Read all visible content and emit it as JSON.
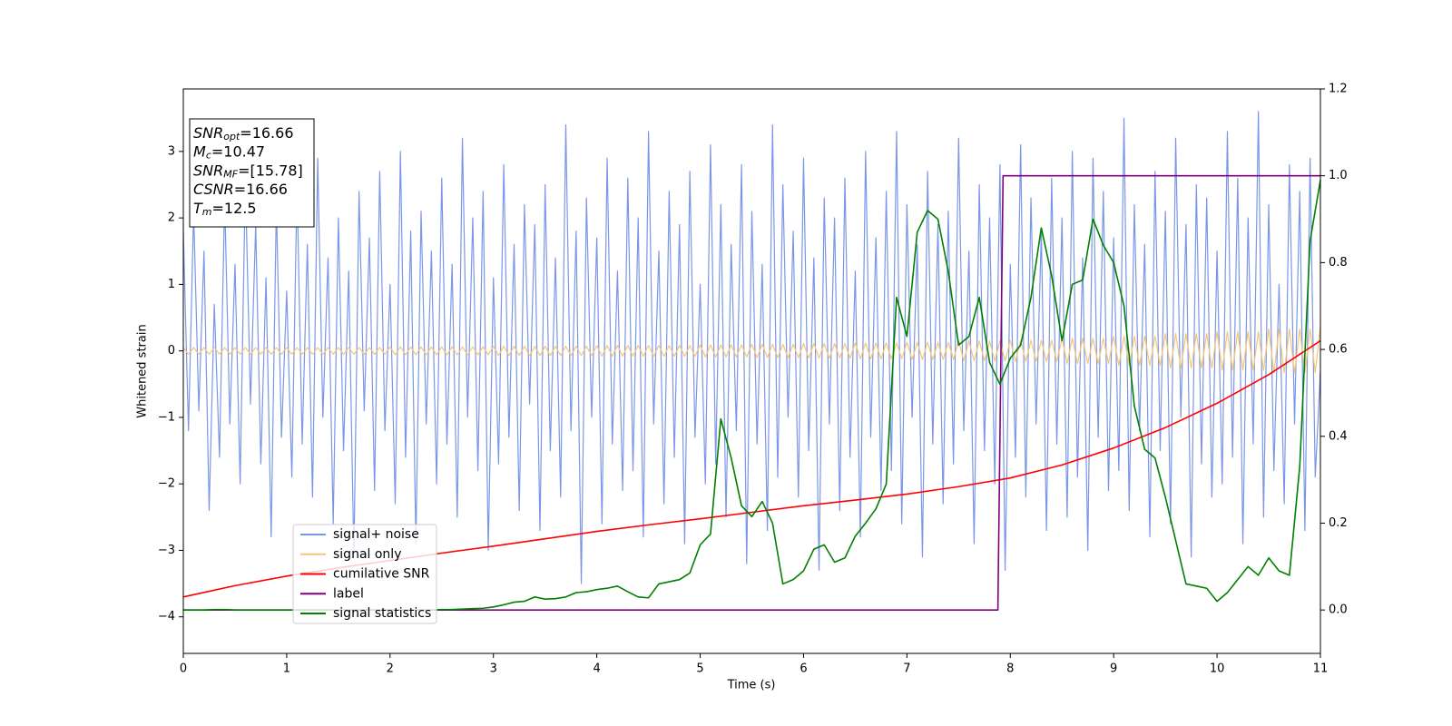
{
  "chart_data": {
    "type": "line",
    "xlabel": "Time (s)",
    "ylabel": "Whitened strain",
    "xlim": [
      0,
      11
    ],
    "ylim": [
      -4.55,
      3.94
    ],
    "y2lim": [
      -0.1,
      1.2
    ],
    "xticks": [
      0,
      1,
      2,
      3,
      4,
      5,
      6,
      7,
      8,
      9,
      10,
      11
    ],
    "yticks": [
      {
        "value": -4,
        "label": "−4"
      },
      {
        "value": -3,
        "label": "−3"
      },
      {
        "value": -2,
        "label": "−2"
      },
      {
        "value": -1,
        "label": "−1"
      },
      0,
      1,
      2,
      3
    ],
    "y2ticks": [
      {
        "value": 0,
        "label": "0.0"
      },
      0.2,
      0.4,
      0.6,
      0.8,
      {
        "value": 1,
        "label": "1.0"
      },
      1.2
    ],
    "legend": "lower left",
    "annotation": [
      {
        "main": "SNR",
        "sub": "opt",
        "rest": "=16.66"
      },
      {
        "main": "M",
        "sub": "c",
        "rest": "=10.47"
      },
      {
        "main": "SNR",
        "sub": "MF",
        "rest": "=[15.78]"
      },
      {
        "main": "CSNR",
        "rest": "=16.66"
      },
      {
        "main": "T",
        "sub": "m",
        "rest": "=12.5"
      }
    ],
    "x": [
      0,
      0.05,
      0.1,
      0.15,
      0.2,
      0.25,
      0.3,
      0.35,
      0.4,
      0.45,
      0.5,
      0.55,
      0.6,
      0.65,
      0.7,
      0.75,
      0.8,
      0.85,
      0.9,
      0.95,
      1,
      1.05,
      1.1,
      1.15,
      1.2,
      1.25,
      1.3,
      1.35,
      1.4,
      1.45,
      1.5,
      1.55,
      1.6,
      1.65,
      1.7,
      1.75,
      1.8,
      1.85,
      1.9,
      1.95,
      2,
      2.05,
      2.1,
      2.15,
      2.2,
      2.25,
      2.3,
      2.35,
      2.4,
      2.45,
      2.5,
      2.55,
      2.6,
      2.65,
      2.7,
      2.75,
      2.8,
      2.85,
      2.9,
      2.95,
      3,
      3.05,
      3.1,
      3.15,
      3.2,
      3.25,
      3.3,
      3.35,
      3.4,
      3.45,
      3.5,
      3.55,
      3.6,
      3.65,
      3.7,
      3.75,
      3.8,
      3.85,
      3.9,
      3.95,
      4,
      4.05,
      4.1,
      4.15,
      4.2,
      4.25,
      4.3,
      4.35,
      4.4,
      4.45,
      4.5,
      4.55,
      4.6,
      4.65,
      4.7,
      4.75,
      4.8,
      4.85,
      4.9,
      4.95,
      5,
      5.05,
      5.1,
      5.15,
      5.2,
      5.25,
      5.3,
      5.35,
      5.4,
      5.45,
      5.5,
      5.55,
      5.6,
      5.65,
      5.7,
      5.75,
      5.8,
      5.85,
      5.9,
      5.95,
      6,
      6.05,
      6.1,
      6.15,
      6.2,
      6.25,
      6.3,
      6.35,
      6.4,
      6.45,
      6.5,
      6.55,
      6.6,
      6.65,
      6.7,
      6.75,
      6.8,
      6.85,
      6.9,
      6.95,
      7,
      7.05,
      7.1,
      7.15,
      7.2,
      7.25,
      7.3,
      7.35,
      7.4,
      7.45,
      7.5,
      7.55,
      7.6,
      7.65,
      7.7,
      7.75,
      7.8,
      7.85,
      7.9,
      7.95,
      8,
      8.05,
      8.1,
      8.15,
      8.2,
      8.25,
      8.3,
      8.35,
      8.4,
      8.45,
      8.5,
      8.55,
      8.6,
      8.65,
      8.7,
      8.75,
      8.8,
      8.85,
      8.9,
      8.95,
      9,
      9.05,
      9.1,
      9.15,
      9.2,
      9.25,
      9.3,
      9.35,
      9.4,
      9.45,
      9.5,
      9.55,
      9.6,
      9.65,
      9.7,
      9.75,
      9.8,
      9.85,
      9.9,
      9.95,
      10,
      10.05,
      10.1,
      10.15,
      10.2,
      10.25,
      10.3,
      10.35,
      10.4,
      10.45,
      10.5,
      10.55,
      10.6,
      10.65,
      10.7,
      10.75,
      10.8,
      10.85,
      10.9,
      10.95,
      11
    ],
    "series": [
      {
        "name": "signal+ noise",
        "color": "#7b96e8",
        "values": [
          1.8,
          -1.2,
          2.1,
          -0.9,
          1.5,
          -2.4,
          0.7,
          -1.6,
          2.3,
          -1.1,
          1.3,
          -2.0,
          2.6,
          -0.8,
          1.9,
          -1.7,
          1.1,
          -2.8,
          2.2,
          -1.3,
          0.9,
          -1.9,
          2.5,
          -1.4,
          1.6,
          -2.2,
          2.9,
          -1.0,
          1.4,
          -2.6,
          2.0,
          -1.5,
          1.2,
          -3.1,
          2.4,
          -0.9,
          1.7,
          -2.1,
          2.7,
          -1.2,
          1.0,
          -2.3,
          3.0,
          -1.6,
          1.8,
          -2.9,
          2.1,
          -1.1,
          1.5,
          -2.0,
          2.6,
          -1.4,
          1.3,
          -2.5,
          3.2,
          -1.0,
          2.0,
          -1.8,
          2.4,
          -3.0,
          1.1,
          -1.7,
          2.8,
          -1.3,
          1.6,
          -2.4,
          2.2,
          -0.8,
          1.9,
          -2.7,
          2.5,
          -1.5,
          1.4,
          -2.2,
          3.4,
          -1.2,
          1.8,
          -3.5,
          2.3,
          -1.0,
          1.7,
          -2.6,
          2.9,
          -1.4,
          1.2,
          -2.1,
          2.6,
          -1.8,
          2.0,
          -2.8,
          3.3,
          -1.1,
          1.5,
          -2.3,
          2.4,
          -1.6,
          1.9,
          -2.9,
          2.7,
          -1.3,
          1.0,
          -2.0,
          3.1,
          -1.7,
          2.2,
          -2.5,
          1.6,
          -1.2,
          2.8,
          -3.2,
          2.1,
          -1.4,
          1.3,
          -2.7,
          3.4,
          -1.9,
          2.5,
          -1.0,
          1.8,
          -2.2,
          2.9,
          -1.5,
          1.4,
          -3.3,
          2.3,
          -1.1,
          2.0,
          -2.4,
          2.6,
          -1.6,
          1.2,
          -2.8,
          3.0,
          -1.3,
          1.7,
          -2.1,
          2.4,
          -1.8,
          3.3,
          -2.6,
          2.2,
          -1.0,
          1.6,
          -3.1,
          2.7,
          -1.4,
          1.9,
          -2.3,
          2.1,
          -1.7,
          3.2,
          -1.2,
          1.5,
          -2.9,
          2.5,
          -1.5,
          2.0,
          -2.0,
          2.8,
          -3.3,
          1.3,
          -1.6,
          3.1,
          -2.2,
          2.3,
          -1.1,
          1.8,
          -2.7,
          2.6,
          -1.4,
          2.0,
          -2.5,
          3.0,
          -1.9,
          1.4,
          -3.0,
          2.9,
          -1.3,
          2.4,
          -2.1,
          1.7,
          -1.8,
          3.5,
          -2.4,
          2.2,
          -1.2,
          1.6,
          -2.8,
          2.7,
          -1.5,
          2.1,
          -2.6,
          3.2,
          -1.0,
          1.9,
          -3.1,
          2.5,
          -1.7,
          2.3,
          -2.2,
          1.5,
          -2.0,
          3.3,
          -1.6,
          2.6,
          -2.9,
          2.0,
          -1.4,
          3.6,
          -2.5,
          2.2,
          -1.8,
          1.0,
          -2.3,
          2.8,
          -1.1,
          2.4,
          -2.7,
          2.9,
          -1.9,
          -0.3
        ]
      },
      {
        "name": "signal only",
        "color": "#f5c67a",
        "values": [
          0.05,
          -0.05,
          0.05,
          -0.05,
          0.05,
          -0.05,
          0.05,
          -0.05,
          0.05,
          -0.05,
          0.05,
          -0.05,
          0.05,
          -0.05,
          0.05,
          -0.05,
          0.05,
          -0.05,
          0.05,
          -0.05,
          0.05,
          -0.05,
          0.05,
          -0.05,
          0.05,
          -0.05,
          0.05,
          -0.05,
          0.05,
          -0.05,
          0.05,
          -0.05,
          0.05,
          -0.05,
          0.05,
          -0.05,
          0.05,
          -0.05,
          0.05,
          -0.05,
          0.06,
          -0.06,
          0.06,
          -0.06,
          0.06,
          -0.06,
          0.06,
          -0.06,
          0.06,
          -0.06,
          0.06,
          -0.06,
          0.06,
          -0.06,
          0.06,
          -0.06,
          0.06,
          -0.06,
          0.06,
          -0.06,
          0.07,
          -0.07,
          0.07,
          -0.07,
          0.07,
          -0.07,
          0.07,
          -0.07,
          0.07,
          -0.07,
          0.07,
          -0.07,
          0.07,
          -0.07,
          0.07,
          -0.07,
          0.07,
          -0.07,
          0.07,
          -0.07,
          0.08,
          -0.08,
          0.08,
          -0.08,
          0.08,
          -0.08,
          0.08,
          -0.08,
          0.08,
          -0.08,
          0.08,
          -0.08,
          0.08,
          -0.08,
          0.08,
          -0.08,
          0.08,
          -0.08,
          0.08,
          -0.08,
          0.09,
          -0.09,
          0.09,
          -0.09,
          0.09,
          -0.09,
          0.09,
          -0.09,
          0.09,
          -0.09,
          0.1,
          -0.1,
          0.1,
          -0.1,
          0.1,
          -0.1,
          0.1,
          -0.1,
          0.1,
          -0.1,
          0.11,
          -0.11,
          0.11,
          -0.11,
          0.11,
          -0.11,
          0.11,
          -0.11,
          0.11,
          -0.11,
          0.12,
          -0.12,
          0.12,
          -0.12,
          0.12,
          -0.12,
          0.12,
          -0.12,
          0.12,
          -0.12,
          0.13,
          -0.13,
          0.13,
          -0.13,
          0.13,
          -0.13,
          0.13,
          -0.13,
          0.13,
          -0.13,
          0.15,
          -0.15,
          0.15,
          -0.15,
          0.15,
          -0.15,
          0.15,
          -0.15,
          0.15,
          -0.15,
          0.16,
          -0.16,
          0.16,
          -0.16,
          0.16,
          -0.16,
          0.16,
          -0.16,
          0.16,
          -0.16,
          0.19,
          -0.19,
          0.19,
          -0.19,
          0.19,
          -0.19,
          0.19,
          -0.19,
          0.19,
          -0.19,
          0.22,
          -0.22,
          0.22,
          -0.22,
          0.22,
          -0.22,
          0.22,
          -0.22,
          0.22,
          -0.22,
          0.26,
          -0.26,
          0.26,
          -0.26,
          0.26,
          -0.26,
          0.26,
          -0.26,
          0.26,
          -0.26,
          0.29,
          -0.29,
          0.29,
          -0.29,
          0.29,
          -0.29,
          0.29,
          -0.29,
          0.29,
          -0.29,
          0.33,
          -0.33,
          0.33,
          -0.33,
          0.33,
          -0.33,
          0.33,
          -0.33,
          0.33,
          -0.33,
          0.38
        ]
      },
      {
        "name": "cumilative SNR",
        "color": "#ff0000",
        "axis": "y2",
        "x": [
          0,
          0.5,
          1,
          1.5,
          2,
          2.5,
          3,
          3.5,
          4,
          4.5,
          5,
          5.5,
          6,
          6.5,
          7,
          7.5,
          8,
          8.5,
          9,
          9.5,
          10,
          10.5,
          11
        ],
        "values": [
          0.03,
          0.056,
          0.078,
          0.097,
          0.114,
          0.131,
          0.147,
          0.164,
          0.181,
          0.196,
          0.21,
          0.225,
          0.24,
          0.253,
          0.267,
          0.284,
          0.304,
          0.334,
          0.373,
          0.42,
          0.476,
          0.542,
          0.62
        ]
      },
      {
        "name": "label",
        "color": "#800080",
        "axis": "y2",
        "x": [
          0,
          7.88,
          7.93,
          11
        ],
        "values": [
          0,
          0,
          1,
          1
        ]
      },
      {
        "name": "signal statistics",
        "color": "#008000",
        "axis": "y2",
        "x": [
          0,
          0.1,
          0.2,
          0.3,
          0.4,
          0.5,
          0.6,
          0.7,
          0.8,
          0.9,
          1,
          1.1,
          1.2,
          1.3,
          1.4,
          1.5,
          1.6,
          1.7,
          1.8,
          1.9,
          2,
          2.1,
          2.2,
          2.3,
          2.4,
          2.5,
          2.6,
          2.7,
          2.8,
          2.9,
          3,
          3.1,
          3.2,
          3.3,
          3.4,
          3.5,
          3.6,
          3.7,
          3.8,
          3.9,
          4,
          4.1,
          4.2,
          4.3,
          4.4,
          4.5,
          4.6,
          4.7,
          4.8,
          4.9,
          5,
          5.1,
          5.2,
          5.3,
          5.4,
          5.5,
          5.6,
          5.7,
          5.8,
          5.9,
          6,
          6.1,
          6.2,
          6.3,
          6.4,
          6.5,
          6.6,
          6.7,
          6.8,
          6.9,
          7,
          7.1,
          7.2,
          7.3,
          7.4,
          7.5,
          7.6,
          7.7,
          7.8,
          7.9,
          8,
          8.1,
          8.2,
          8.3,
          8.4,
          8.5,
          8.6,
          8.7,
          8.8,
          8.9,
          9,
          9.1,
          9.2,
          9.3,
          9.4,
          9.5,
          9.6,
          9.7,
          9.8,
          9.9,
          10,
          10.1,
          10.2,
          10.3,
          10.4,
          10.5,
          10.6,
          10.7,
          10.8,
          10.9,
          11
        ],
        "values": [
          0,
          0,
          0,
          0.001,
          0.001,
          0,
          0,
          0,
          0,
          0,
          0,
          0,
          0,
          0,
          0,
          0,
          0,
          0,
          0,
          0,
          0,
          0,
          0,
          0,
          0,
          0.001,
          0.001,
          0.002,
          0.003,
          0.004,
          0.007,
          0.012,
          0.018,
          0.02,
          0.03,
          0.025,
          0.026,
          0.03,
          0.04,
          0.042,
          0.047,
          0.05,
          0.055,
          0.042,
          0.03,
          0.028,
          0.06,
          0.065,
          0.07,
          0.085,
          0.15,
          0.175,
          0.44,
          0.35,
          0.24,
          0.215,
          0.25,
          0.2,
          0.06,
          0.07,
          0.09,
          0.14,
          0.15,
          0.11,
          0.12,
          0.17,
          0.2,
          0.233,
          0.29,
          0.72,
          0.63,
          0.87,
          0.92,
          0.9,
          0.78,
          0.61,
          0.63,
          0.72,
          0.57,
          0.52,
          0.58,
          0.61,
          0.72,
          0.88,
          0.77,
          0.62,
          0.75,
          0.76,
          0.9,
          0.84,
          0.8,
          0.7,
          0.47,
          0.37,
          0.35,
          0.26,
          0.16,
          0.06,
          0.055,
          0.05,
          0.02,
          0.04,
          0.07,
          0.1,
          0.08,
          0.12,
          0.09,
          0.08,
          0.33,
          0.85,
          0.99
        ]
      }
    ]
  }
}
